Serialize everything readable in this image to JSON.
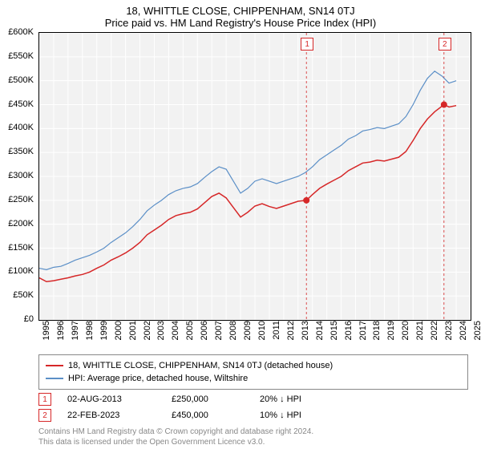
{
  "title": "18, WHITTLE CLOSE, CHIPPENHAM, SN14 0TJ",
  "subtitle": "Price paid vs. HM Land Registry's House Price Index (HPI)",
  "chart": {
    "type": "line",
    "background_color": "#f2f2f2",
    "grid_color": "#ffffff",
    "grid_width": 1,
    "ylim": [
      0,
      600000
    ],
    "ytick_step": 50000,
    "ytick_labels": [
      "£0",
      "£50K",
      "£100K",
      "£150K",
      "£200K",
      "£250K",
      "£300K",
      "£350K",
      "£400K",
      "£450K",
      "£500K",
      "£550K",
      "£600K"
    ],
    "xlim": [
      1995,
      2025
    ],
    "xtick_step": 1,
    "xtick_labels": [
      "1995",
      "1996",
      "1997",
      "1998",
      "1999",
      "2000",
      "2001",
      "2002",
      "2003",
      "2004",
      "2005",
      "2006",
      "2007",
      "2008",
      "2009",
      "2010",
      "2011",
      "2012",
      "2013",
      "2014",
      "2015",
      "2016",
      "2017",
      "2018",
      "2019",
      "2020",
      "2021",
      "2022",
      "2023",
      "2024",
      "2025"
    ],
    "label_fontsize": 11,
    "series": [
      {
        "name": "hpi",
        "color": "#5b8fc7",
        "width": 1.2,
        "x": [
          1995,
          1995.5,
          1996,
          1996.5,
          1997,
          1997.5,
          1998,
          1998.5,
          1999,
          1999.5,
          2000,
          2000.5,
          2001,
          2001.5,
          2002,
          2002.5,
          2003,
          2003.5,
          2004,
          2004.5,
          2005,
          2005.5,
          2006,
          2006.5,
          2007,
          2007.5,
          2008,
          2008.5,
          2009,
          2009.5,
          2010,
          2010.5,
          2011,
          2011.5,
          2012,
          2012.5,
          2013,
          2013.5,
          2014,
          2014.5,
          2015,
          2015.5,
          2016,
          2016.5,
          2017,
          2017.5,
          2018,
          2018.5,
          2019,
          2019.5,
          2020,
          2020.5,
          2021,
          2021.5,
          2022,
          2022.5,
          2023,
          2023.5,
          2024
        ],
        "y": [
          108000,
          105000,
          110000,
          112000,
          118000,
          125000,
          130000,
          135000,
          142000,
          150000,
          162000,
          172000,
          182000,
          195000,
          210000,
          228000,
          240000,
          250000,
          262000,
          270000,
          275000,
          278000,
          285000,
          298000,
          310000,
          320000,
          315000,
          290000,
          265000,
          275000,
          290000,
          295000,
          290000,
          285000,
          290000,
          295000,
          300000,
          308000,
          320000,
          335000,
          345000,
          355000,
          365000,
          378000,
          385000,
          395000,
          398000,
          402000,
          400000,
          405000,
          410000,
          425000,
          450000,
          480000,
          505000,
          520000,
          510000,
          495000,
          500000
        ]
      },
      {
        "name": "price_paid",
        "color": "#d62728",
        "width": 1.5,
        "x": [
          1995,
          1995.5,
          1996,
          1996.5,
          1997,
          1997.5,
          1998,
          1998.5,
          1999,
          1999.5,
          2000,
          2000.5,
          2001,
          2001.5,
          2002,
          2002.5,
          2003,
          2003.5,
          2004,
          2004.5,
          2005,
          2005.5,
          2006,
          2006.5,
          2007,
          2007.5,
          2008,
          2008.5,
          2009,
          2009.5,
          2010,
          2010.5,
          2011,
          2011.5,
          2012,
          2012.5,
          2013,
          2013.58,
          2014,
          2014.5,
          2015,
          2015.5,
          2016,
          2016.5,
          2017,
          2017.5,
          2018,
          2018.5,
          2019,
          2019.5,
          2020,
          2020.5,
          2021,
          2021.5,
          2022,
          2022.5,
          2023.15,
          2023.5,
          2024
        ],
        "y": [
          88000,
          80000,
          82000,
          85000,
          88000,
          92000,
          95000,
          100000,
          108000,
          115000,
          125000,
          132000,
          140000,
          150000,
          162000,
          178000,
          188000,
          198000,
          210000,
          218000,
          222000,
          225000,
          232000,
          245000,
          258000,
          265000,
          255000,
          235000,
          215000,
          225000,
          238000,
          243000,
          237000,
          233000,
          238000,
          243000,
          248000,
          250000,
          262000,
          275000,
          284000,
          292000,
          300000,
          312000,
          320000,
          328000,
          330000,
          334000,
          332000,
          336000,
          340000,
          352000,
          375000,
          400000,
          420000,
          435000,
          450000,
          445000,
          448000
        ]
      }
    ],
    "markers": [
      {
        "n": "1",
        "x": 2013.58,
        "y": 250000,
        "color": "#d62728"
      },
      {
        "n": "2",
        "x": 2023.15,
        "y": 450000,
        "color": "#d62728"
      }
    ],
    "vlines": [
      {
        "x": 2013.58,
        "color": "#d62728"
      },
      {
        "x": 2023.15,
        "color": "#d62728"
      }
    ]
  },
  "legend": {
    "series1_label": "18, WHITTLE CLOSE, CHIPPENHAM, SN14 0TJ (detached house)",
    "series1_color": "#d62728",
    "series2_label": "HPI: Average price, detached house, Wiltshire",
    "series2_color": "#5b8fc7"
  },
  "sales": [
    {
      "n": "1",
      "date": "02-AUG-2013",
      "price": "£250,000",
      "delta": "20% ↓ HPI",
      "color": "#d62728"
    },
    {
      "n": "2",
      "date": "22-FEB-2023",
      "price": "£450,000",
      "delta": "10% ↓ HPI",
      "color": "#d62728"
    }
  ],
  "footer_line1": "Contains HM Land Registry data © Crown copyright and database right 2024.",
  "footer_line2": "This data is licensed under the Open Government Licence v3.0."
}
